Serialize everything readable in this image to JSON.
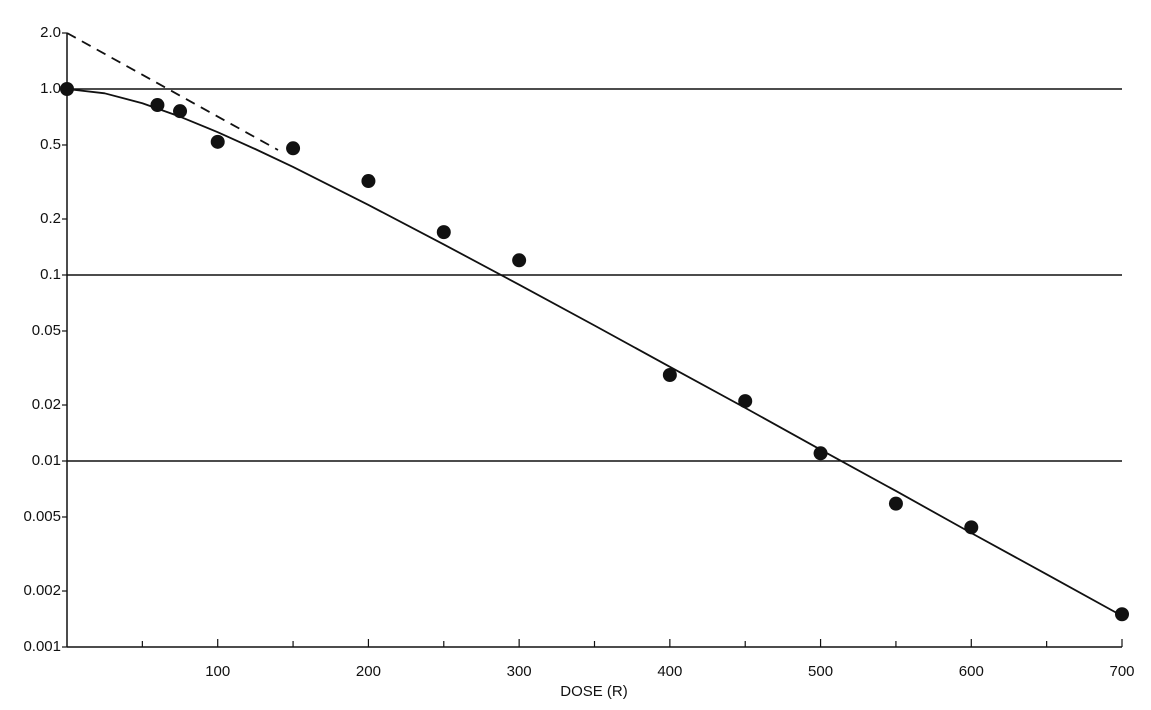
{
  "chart_data": {
    "type": "scatter",
    "x_label": "DOSE (R)",
    "log_y": true,
    "grid": true,
    "color": "#111111",
    "xlim": [
      0,
      700
    ],
    "xticks": [
      100,
      200,
      300,
      400,
      500,
      600,
      700
    ],
    "xminorticks": [
      50,
      150,
      250,
      350,
      450,
      550,
      650
    ],
    "ylim": [
      0.001,
      2.0
    ],
    "yticks": [
      0.001,
      0.002,
      0.005,
      0.01,
      0.02,
      0.05,
      0.1,
      0.2,
      0.5,
      {
        "value": 1,
        "label": "1.0"
      },
      {
        "value": 2,
        "label": "2.0"
      }
    ],
    "series": [
      {
        "type": "scatter",
        "color": "#111111",
        "x": [
          0,
          60,
          75,
          100,
          150,
          200,
          250,
          300,
          400,
          450,
          500,
          550,
          600,
          700
        ],
        "values": [
          1.0,
          0.82,
          0.76,
          0.52,
          0.48,
          0.32,
          0.17,
          0.12,
          0.029,
          0.021,
          0.011,
          0.0059,
          0.0044,
          0.0015
        ]
      },
      {
        "type": "line",
        "color": "#111111",
        "x": [
          0,
          25,
          50,
          75,
          100,
          125,
          150,
          200,
          250,
          300,
          350,
          400,
          450,
          500,
          550,
          600,
          650,
          700
        ],
        "values": [
          1.0,
          0.948,
          0.838,
          0.71,
          0.586,
          0.475,
          0.381,
          0.238,
          0.146,
          0.0887,
          0.0535,
          0.0321,
          0.0193,
          0.0115,
          0.0069,
          0.0041,
          0.00246,
          0.00147
        ]
      },
      {
        "type": "line",
        "dashed": true,
        "color": "#111111",
        "x": [
          0,
          140
        ],
        "values": [
          2.0,
          0.47
        ]
      }
    ]
  }
}
